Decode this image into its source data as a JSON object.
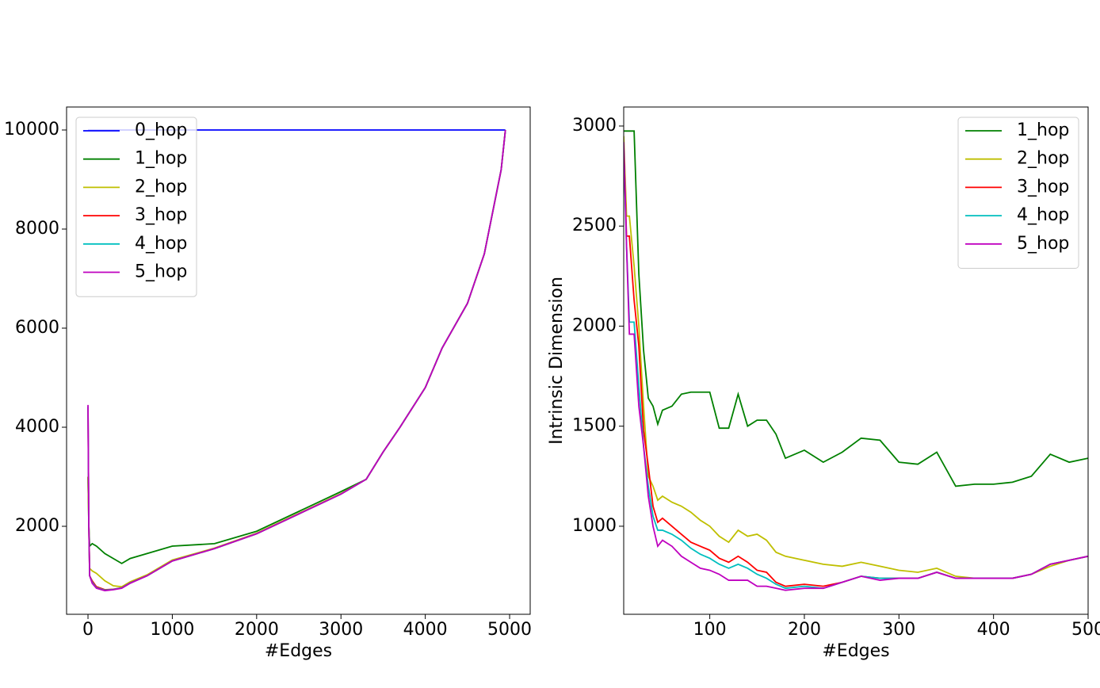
{
  "chart_data": [
    {
      "type": "line",
      "xlabel": "#Edges",
      "legend": "upper left",
      "xlim": [
        -254,
        5244
      ],
      "ylim": [
        224,
        10464
      ],
      "xticks": [
        0,
        1000,
        2000,
        3000,
        4000,
        5000
      ],
      "yticks": [
        2000,
        4000,
        6000,
        8000,
        10000
      ],
      "x": [
        0,
        10,
        20,
        50,
        100,
        200,
        300,
        400,
        500,
        700,
        1000,
        1500,
        2000,
        2500,
        3000,
        3300,
        3500,
        3700,
        4000,
        4200,
        4500,
        4700,
        4900,
        4950
      ],
      "series": [
        {
          "name": "0_hop",
          "color": "#0000ff",
          "values": [
            10000,
            10000,
            10000,
            10000,
            10000,
            10000,
            10000,
            10000,
            10000,
            10000,
            10000,
            10000,
            10000,
            10000,
            10000,
            10000,
            10000,
            10000,
            10000,
            10000,
            10000,
            10000,
            10000,
            10000
          ]
        },
        {
          "name": "1_hop",
          "color": "#008000",
          "values": [
            3000,
            2000,
            1600,
            1650,
            1600,
            1450,
            1350,
            1250,
            1350,
            1450,
            1600,
            1650,
            1900,
            2300,
            2700,
            2950,
            3500,
            4000,
            4800,
            5600,
            6500,
            7500,
            9200,
            10000
          ]
        },
        {
          "name": "2_hop",
          "color": "#bfbf00",
          "values": [
            3000,
            2000,
            1150,
            1100,
            1050,
            900,
            800,
            780,
            880,
            1020,
            1320,
            1560,
            1860,
            2260,
            2660,
            2950,
            3500,
            4000,
            4800,
            5600,
            6500,
            7500,
            9200,
            10000
          ]
        },
        {
          "name": "3_hop",
          "color": "#ff0000",
          "values": [
            4400,
            2000,
            1000,
            900,
            780,
            720,
            730,
            760,
            860,
            1000,
            1300,
            1550,
            1850,
            2250,
            2650,
            2950,
            3500,
            4000,
            4800,
            5600,
            6500,
            7500,
            9200,
            10000
          ]
        },
        {
          "name": "4_hop",
          "color": "#00bfbf",
          "values": [
            4420,
            2000,
            1000,
            870,
            760,
            710,
            725,
            755,
            855,
            1000,
            1300,
            1550,
            1850,
            2250,
            2650,
            2950,
            3500,
            4000,
            4800,
            5600,
            6500,
            7500,
            9200,
            10000
          ]
        },
        {
          "name": "5_hop",
          "color": "#bf00bf",
          "values": [
            4450,
            2000,
            1000,
            850,
            750,
            700,
            720,
            750,
            850,
            1000,
            1300,
            1550,
            1850,
            2250,
            2650,
            2950,
            3500,
            4000,
            4800,
            5600,
            6500,
            7500,
            9200,
            10000
          ]
        }
      ]
    },
    {
      "type": "line",
      "xlabel": "#Edges",
      "ylabel": "Intrinsic Dimension",
      "legend": "upper right",
      "xlim": [
        9,
        500
      ],
      "ylim": [
        560,
        3095
      ],
      "xticks": [
        100,
        200,
        300,
        400,
        500
      ],
      "yticks": [
        1000,
        1500,
        2000,
        2500,
        3000
      ],
      "x": [
        9,
        12,
        15,
        20,
        25,
        30,
        35,
        40,
        45,
        50,
        60,
        70,
        80,
        90,
        100,
        110,
        120,
        130,
        140,
        150,
        160,
        170,
        180,
        200,
        220,
        240,
        260,
        280,
        300,
        320,
        340,
        360,
        380,
        400,
        420,
        440,
        460,
        480,
        500
      ],
      "series": [
        {
          "name": "1_hop",
          "color": "#008000",
          "values": [
            2975,
            2975,
            2975,
            2975,
            2260,
            1880,
            1640,
            1600,
            1510,
            1580,
            1600,
            1660,
            1670,
            1670,
            1670,
            1490,
            1490,
            1660,
            1500,
            1530,
            1530,
            1460,
            1340,
            1380,
            1320,
            1370,
            1440,
            1430,
            1320,
            1310,
            1370,
            1200,
            1210,
            1210,
            1220,
            1250,
            1360,
            1320,
            1340
          ]
        },
        {
          "name": "2_hop",
          "color": "#bfbf00",
          "values": [
            2950,
            2550,
            2550,
            2300,
            2000,
            1600,
            1250,
            1200,
            1130,
            1150,
            1120,
            1100,
            1070,
            1030,
            1000,
            950,
            920,
            980,
            950,
            960,
            930,
            870,
            850,
            830,
            810,
            800,
            820,
            800,
            780,
            770,
            790,
            750,
            740,
            740,
            740,
            760,
            800,
            830,
            850
          ]
        },
        {
          "name": "3_hop",
          "color": "#ff0000",
          "values": [
            2900,
            2450,
            2450,
            2130,
            1900,
            1480,
            1300,
            1100,
            1020,
            1040,
            1000,
            960,
            920,
            900,
            880,
            840,
            820,
            850,
            820,
            780,
            770,
            720,
            700,
            710,
            700,
            720,
            750,
            740,
            740,
            740,
            770,
            740,
            740,
            740,
            740,
            760,
            810,
            830,
            850
          ]
        },
        {
          "name": "4_hop",
          "color": "#00bfbf",
          "values": [
            2900,
            2400,
            2020,
            2020,
            1700,
            1400,
            1200,
            1050,
            980,
            980,
            960,
            930,
            890,
            860,
            840,
            810,
            790,
            810,
            790,
            760,
            740,
            710,
            690,
            700,
            690,
            720,
            750,
            740,
            740,
            740,
            770,
            740,
            740,
            740,
            740,
            760,
            810,
            830,
            850
          ]
        },
        {
          "name": "5_hop",
          "color": "#bf00bf",
          "values": [
            2920,
            2400,
            1960,
            1960,
            1600,
            1400,
            1150,
            1000,
            900,
            930,
            900,
            850,
            820,
            790,
            780,
            760,
            730,
            730,
            730,
            700,
            700,
            690,
            680,
            690,
            690,
            720,
            750,
            730,
            740,
            740,
            770,
            740,
            740,
            740,
            740,
            760,
            810,
            830,
            850
          ]
        }
      ]
    }
  ]
}
